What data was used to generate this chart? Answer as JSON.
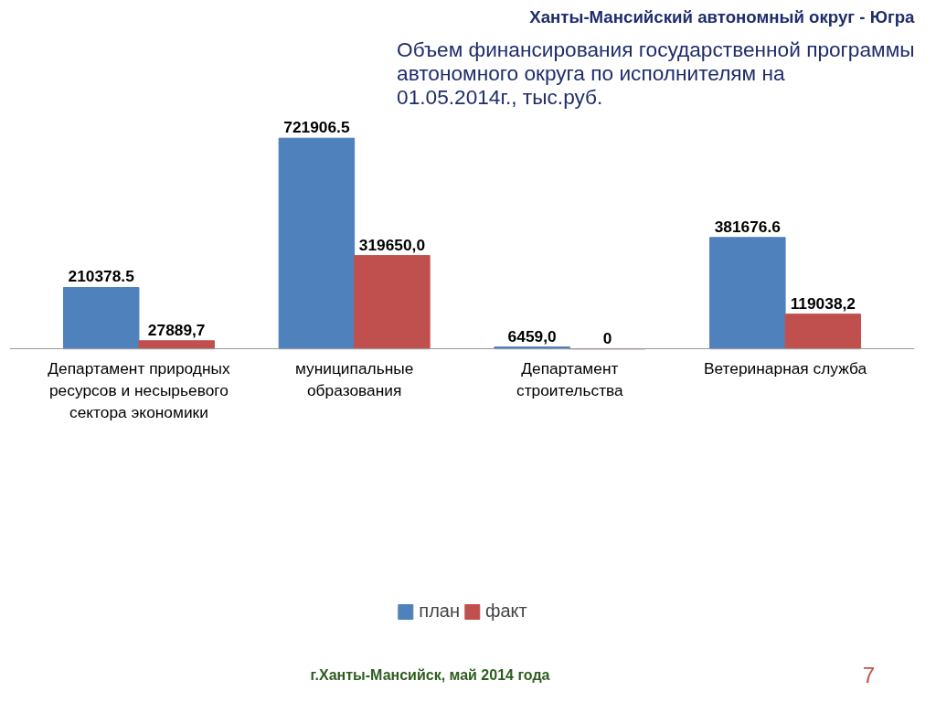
{
  "chart_data": {
    "type": "bar",
    "title": "Объем финансирования государственной программы автономного округа по исполнителям на 01.05.2014г., тыс.руб.",
    "subtitle": "Ханты-Мансийский автономный округ - Югра",
    "categories": [
      "Департамент природных ресурсов и несырьевого сектора экономики",
      "муниципальные образования",
      "Департамент строительства",
      "Ветеринарная служба"
    ],
    "series": [
      {
        "name": "план",
        "color": "#4f81bd",
        "values": [
          210378.5,
          721906.5,
          6459.0,
          381676.6
        ],
        "value_labels": [
          "210378.5",
          "721906.5",
          "6459,0",
          "381676.6"
        ]
      },
      {
        "name": "факт",
        "color": "#c0504d",
        "values": [
          27889.7,
          319650.0,
          0,
          119038.2
        ],
        "value_labels": [
          "27889,7",
          "319650,0",
          "0",
          "119038,2"
        ]
      }
    ],
    "annotations": [
      "г.Ханты-Мансийск, май 2014 года",
      "7"
    ],
    "legend": "bottom",
    "grid": false
  }
}
